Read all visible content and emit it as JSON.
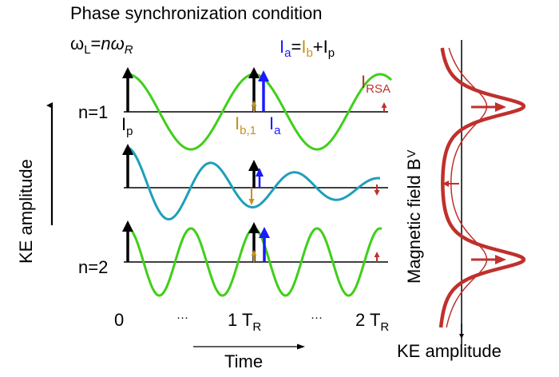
{
  "title": "Phase synchronization condition",
  "condition": {
    "omega_L": "ω",
    "omega_L_sub": "L",
    "eq": "=",
    "n": "n",
    "omega_R": "ω",
    "omega_R_sub": "R"
  },
  "relation": {
    "Ia_I": "I",
    "Ia_sub": "a",
    "eq": "=",
    "Ib_I": "I",
    "Ib_sub": "b",
    "plus": "+",
    "Ip_I": "I",
    "Ip_sub": "p"
  },
  "labels": {
    "n1": "n=1",
    "n2": "n=2",
    "Ip_I": "I",
    "Ip_sub": "p",
    "Ib1_I": "I",
    "Ib1_sub": "b,1",
    "Ia_I": "I",
    "Ia_sub": "a",
    "IRSA_I": "I",
    "IRSA_sub": "RSA",
    "y_axis": "KE amplitude",
    "x_axis": "Time",
    "zero": "0",
    "dots1": "···",
    "oneTR": "1 T",
    "oneTR_sub": "R",
    "dots2": "···",
    "twoTR": "2 T",
    "twoTR_sub": "R",
    "mag_axis": "Magnetic field B",
    "mag_axis_sub": "V",
    "ke_amplitude_right": "KE amplitude"
  },
  "colors": {
    "green": "#3fcf1a",
    "teal": "#1f9fb8",
    "blue": "#1a1aff",
    "gold": "#c8901a",
    "red": "#c0302c",
    "black": "#000000"
  }
}
